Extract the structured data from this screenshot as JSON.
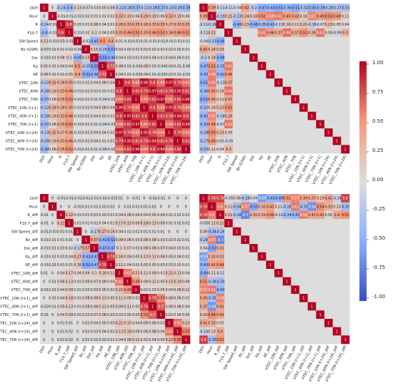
{
  "chart_data": [
    {
      "type": "heatmap",
      "labels": [
        "DOY",
        "Hour",
        "R",
        "F10.7",
        "SW Speed",
        "Bz (GSM)",
        "Dst",
        "Kp",
        "AE",
        "VTEC_10N",
        "VTEC_40N",
        "VTEC_70N",
        "VTEC_10N (t+1)",
        "VTEC_40N (t+1)",
        "VTEC_70N (t+1)",
        "VTEC_10N (t+24)",
        "VTEC_40N (t+24)",
        "VTEC_70N (t+24)"
      ],
      "lower_triangle": [
        [],
        [
          0
        ],
        [
          -0.24,
          -0.01
        ],
        [
          -0.4,
          -0.01,
          0.8
        ],
        [
          0.13,
          -0.01,
          0.03,
          -0.01
        ],
        [
          -0.07,
          0.02,
          0.01,
          0.02,
          -0.02
        ],
        [
          -0.01,
          0.01,
          0.08,
          0.1,
          -0.45,
          0.15
        ],
        [
          0.05,
          0.01,
          0.04,
          0.04,
          0.5,
          -0.25,
          -0.55
        ],
        [
          0.08,
          0.02,
          0.01,
          0.05,
          0.4,
          -0.52,
          -0.46,
          0.73
        ],
        [
          -0.22,
          0.32,
          0.28,
          0.35,
          0.01,
          0.02,
          0.04,
          0.08,
          0.04
        ],
        [
          -0.28,
          0.19,
          0.33,
          0.46,
          -0.01,
          0.02,
          0.03,
          0.03,
          0.01,
          0.8
        ],
        [
          -0.37,
          0.06,
          0.35,
          0.52,
          -0.01,
          0.01,
          0.01,
          -0.04,
          -0.03,
          0.66,
          0.82
        ],
        [
          -0.22,
          0.29,
          0.28,
          0.35,
          0.01,
          0.02,
          0.04,
          0.08,
          0.04,
          0.96,
          0.79,
          0.65
        ],
        [
          -0.28,
          0.19,
          0.33,
          0.46,
          -0.01,
          0.02,
          0.04,
          0.03,
          0.01,
          0.8,
          0.97,
          0.82,
          0.8
        ],
        [
          -0.37,
          0.06,
          0.35,
          0.52,
          -0.01,
          0.01,
          0.01,
          -0.04,
          -0.03,
          0.66,
          0.82,
          0.97,
          0.66,
          0.82
        ],
        [
          -0.23,
          0.32,
          0.27,
          0.36,
          -0.01,
          0.02,
          0.04,
          0.04,
          0.02,
          0.97,
          0.79,
          0.65,
          0.95,
          0.78,
          0.64
        ],
        [
          -0.29,
          0.19,
          0.33,
          0.46,
          -0.01,
          0.02,
          0.04,
          0.01,
          0.01,
          0.79,
          0.95,
          0.81,
          0.78,
          0.94,
          0.81,
          0.79
        ],
        [
          -0.38,
          0.06,
          0.35,
          0.52,
          -0.01,
          0.01,
          0.01,
          -0.06,
          -0.03,
          0.65,
          0.81,
          0.96,
          0.64,
          0.8,
          0.94,
          0.65,
          0.82
        ]
      ],
      "colorbar": {
        "min": -1,
        "max": 1
      }
    },
    {
      "type": "heatmap",
      "labels": [
        "DOY",
        "Hour",
        "R",
        "F10.7",
        "SW Speed",
        "Bz (GSM)",
        "Dst",
        "Kp",
        "AE",
        "VTEC_10N",
        "VTEC_40N",
        "VTEC_70N",
        "VTEC_10N (t+1)",
        "VTEC_40N (t+1)",
        "VTEC_70N (t+1)",
        "VTEC_10N (t+24)",
        "VTEC_40N (t+24)",
        "VTEC_70N (t+24)"
      ],
      "lower_triangle": [
        [],
        [
          0.39
        ],
        [
          -0.11,
          -0.19
        ],
        [
          -0.11,
          0.21
        ],
        [
          -0.04,
          -0.23,
          -0.49
        ],
        [
          0.42,
          0.24,
          0.23
        ],
        [
          -0.2,
          0.18,
          -0.48
        ],
        [
          -0.47,
          0.52,
          -0.35,
          0.61
        ],
        [
          -0.43,
          0.58,
          -0.42,
          0.46
        ],
        [
          -0.51,
          0.61,
          -0.13,
          0.37
        ],
        [
          -0.36,
          0.45,
          0.16,
          0.64
        ],
        [
          -0.51,
          0.43,
          0.11,
          0.37
        ],
        [
          -0.32,
          0.16,
          0.22,
          0.52
        ],
        [
          -0.43,
          0.57,
          -0.18,
          0.28
        ],
        [
          -0.39,
          0.49,
          -0.07,
          0.62
        ],
        [
          -0.28,
          0.53,
          0.23,
          0.09
        ],
        [
          -0.27,
          0.49,
          0.05,
          -0.09
        ],
        [
          -0.33,
          0.11,
          0.04,
          0.3
        ]
      ],
      "colorbar": {
        "min": -1,
        "max": 1
      }
    },
    {
      "type": "heatmap",
      "labels": [
        "DOY",
        "Hour",
        "R_diff",
        "F10.7_diff",
        "SW Speed_diff",
        "Bz_diff",
        "Dst_diff",
        "Kp_diff",
        "AE_diff",
        "VTEC_10N_diff",
        "VTEC_40N_diff",
        "VTEC_70N_diff",
        "VTEC_10N (t+1)_diff",
        "VTEC_40N (t+1)_diff",
        "VTEC_70N (t+1)_diff",
        "VTEC_10N (t+24)_diff",
        "VTEC_40N (t+24)_diff",
        "VTEC_70N (t+24)_diff"
      ],
      "lower_triangle": [
        [],
        [
          0
        ],
        [
          -0.01,
          0
        ],
        [
          -0.01,
          0,
          0.22
        ],
        [
          -0.01,
          -0.01,
          0.01,
          0.01
        ],
        [
          -0.01,
          0.01,
          0.01,
          0.01,
          0
        ],
        [
          -0.01,
          0.01,
          0.03,
          0.02,
          -0.17,
          0.37
        ],
        [
          -0.01,
          0.02,
          0.03,
          0.04,
          0.27,
          -0.42,
          -0.47
        ],
        [
          -0.01,
          0.02,
          0.01,
          0.01,
          0.16,
          -0.52,
          -0.47,
          0.79
        ],
        [
          0.01,
          0,
          0.04,
          0.17,
          0.04,
          0.09,
          0.1,
          0.16,
          0.11
        ],
        [
          0,
          0.01,
          0.06,
          0.13,
          0.01,
          0.06,
          0.07,
          0.09,
          0.04,
          0.61
        ],
        [
          -0.01,
          0.01,
          0.04,
          0.09,
          0.01,
          0.03,
          0.03,
          0.05,
          0.02,
          0.21,
          0.49
        ],
        [
          0,
          0.01,
          0.04,
          0.18,
          0.01,
          0.08,
          0.08,
          0.13,
          0.05,
          0.11,
          0.09,
          0.02
        ],
        [
          -0.02,
          0.01,
          0.05,
          0.13,
          0.01,
          0.08,
          0.08,
          0.13,
          0.05,
          0.09,
          0.11,
          0.03,
          0.78
        ],
        [
          -0.01,
          0,
          0.04,
          0.09,
          0.01,
          0.03,
          0.07,
          0.08,
          0.03,
          0.02,
          0.05,
          0.05,
          0.53,
          0.7
        ],
        [
          0,
          0,
          0.01,
          0.01,
          0,
          0.02,
          0.04,
          0.05,
          0.03,
          0.21,
          0.15,
          0.04,
          0.08,
          0.06,
          0.02
        ],
        [
          0,
          0,
          0.01,
          0.02,
          0,
          0.02,
          0.03,
          0.04,
          0.02,
          0.13,
          0.19,
          0.09,
          0.06,
          0.08,
          0.04,
          0.62
        ],
        [
          0,
          0,
          0.01,
          0.02,
          0,
          0.01,
          0.01,
          0.02,
          0.01,
          0.04,
          0.08,
          0.12,
          0.02,
          0.04,
          0.05,
          0.23,
          0.55
        ]
      ],
      "colorbar": {
        "min": -1,
        "max": 1
      }
    },
    {
      "type": "heatmap",
      "labels": [
        "DOY",
        "Hour",
        "R_diff",
        "F10.7_diff",
        "SW Speed_diff",
        "Bz_diff",
        "Dst_diff",
        "Kp_diff",
        "AE_diff",
        "VTEC_10N_diff",
        "VTEC_40N_diff",
        "VTEC_70N_diff",
        "VTEC_10N (t+1)_diff",
        "VTEC_40N (t+1)_diff",
        "VTEC_70N (t+1)_diff",
        "VTEC_10N (t+24)_diff",
        "VTEC_40N (t+24)_diff",
        "VTEC_70N (t+24)_diff"
      ],
      "lower_triangle": [
        [],
        [
          0.78
        ],
        [
          0.78,
          0.6
        ],
        [
          -0.05,
          0.12,
          0.21
        ],
        [
          0.09,
          -0.34,
          -0.28
        ],
        [
          -0.28,
          0.57,
          -0.7
        ],
        [
          0.04,
          -0.52,
          0.31
        ],
        [
          -0.59,
          0.32,
          0.31
        ],
        [
          -0.43,
          0.42,
          0.49
        ],
        [
          -0.49,
          0.11,
          -0.11
        ],
        [
          0.51,
          -0.28,
          -0.34
        ],
        [
          0.57,
          0.61,
          -0.43
        ],
        [
          0.39,
          -0.35,
          0.58
        ],
        [
          0.37,
          -0.66,
          0.41
        ],
        [
          0.19,
          0.54,
          0.42
        ],
        [
          0.41,
          0.33,
          0.05
        ],
        [
          -0.14,
          0.13,
          0.4
        ],
        [
          0.8,
          -0.35,
          0.51
        ]
      ],
      "colorbar": {
        "min": -1,
        "max": 1
      }
    }
  ],
  "colorbar": {
    "ticks": [
      "1.00",
      "0.75",
      "0.50",
      "0.25",
      "0.00",
      "-0.25",
      "-0.50",
      "-0.75",
      "-1.00"
    ]
  }
}
